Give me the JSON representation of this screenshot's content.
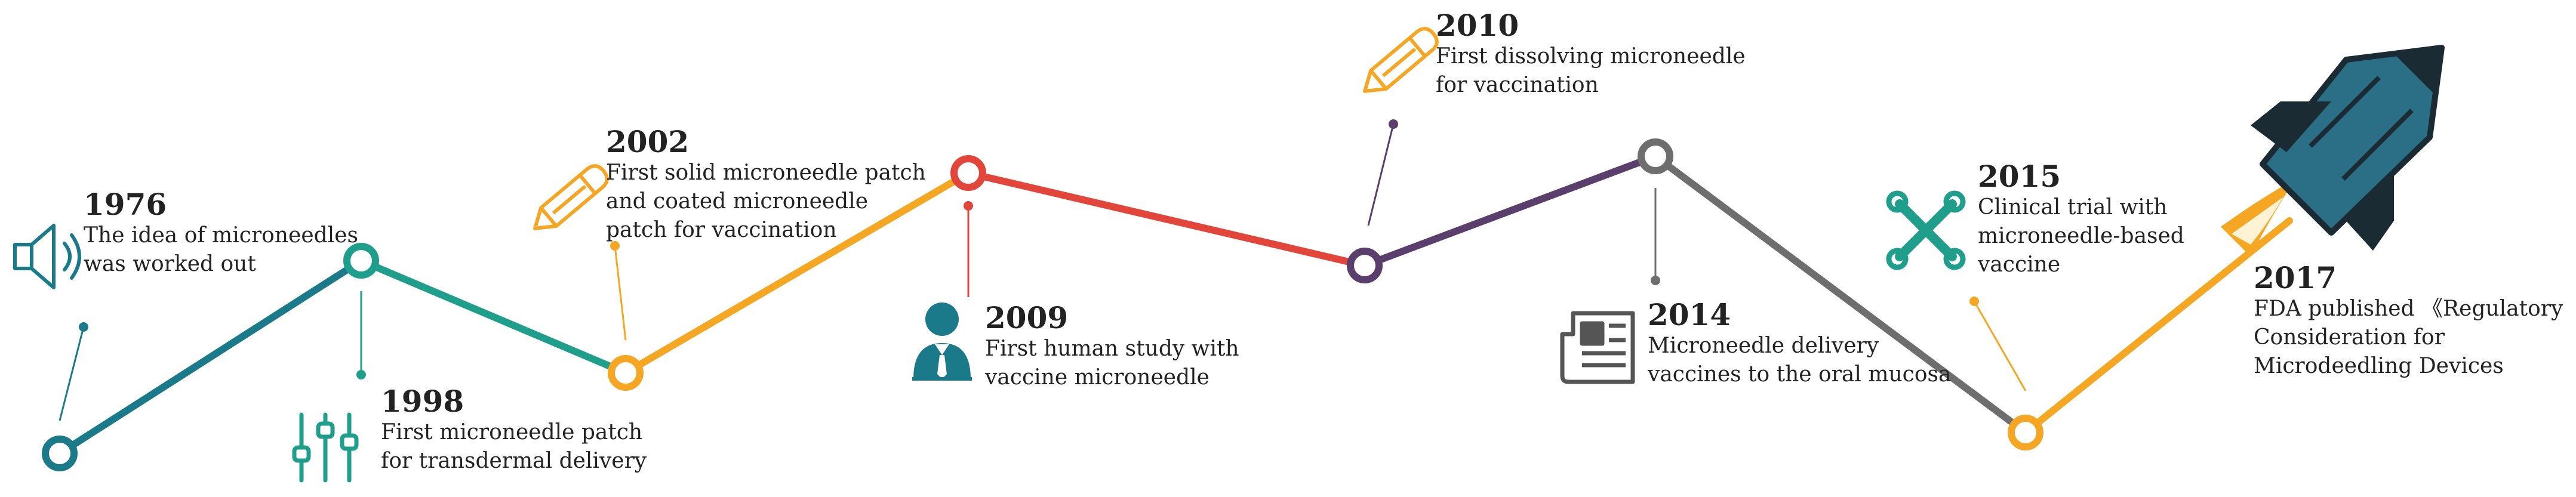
{
  "colors": {
    "teal_dark": "#1a7a8a",
    "teal": "#1f9e8c",
    "orange": "#f5a623",
    "red": "#e2463a",
    "purple": "#5a3e6b",
    "gray": "#6e6e6e",
    "line_1976": "#1a7a8a",
    "line_2017": "#f5a623"
  },
  "milestones": [
    {
      "year": "1976",
      "text": "The idea of microneedles\nwas worked out",
      "icon": "speaker-icon",
      "color": "#1a7a8a"
    },
    {
      "year": "1998",
      "text": "First microneedle patch\nfor transdermal delivery",
      "icon": "sliders-icon",
      "color": "#1f9e8c"
    },
    {
      "year": "2002",
      "text": "First solid microneedle patch\nand coated microneedle\npatch for vaccination",
      "icon": "pencil-icon",
      "color": "#f5a623"
    },
    {
      "year": "2009",
      "text": "First human study with\nvaccine microneedle",
      "icon": "person-icon",
      "color": "#1a7a8a"
    },
    {
      "year": "2010",
      "text": "First dissolving microneedle\nfor vaccination",
      "icon": "pencil-icon",
      "color": "#f5a623"
    },
    {
      "year": "2014",
      "text": "Microneedle delivery\nvaccines to the oral mucosa",
      "icon": "newspaper-icon",
      "color": "#555555"
    },
    {
      "year": "2015",
      "text": "Clinical trial with\nmicroneedle-based\nvaccine",
      "icon": "tools-icon",
      "color": "#1f9e8c"
    },
    {
      "year": "2017",
      "text": "FDA published 《Regulatory\nConsideration for\nMicrodeedling Devices",
      "icon": "rocket-icon",
      "color": "#2a6f86"
    }
  ]
}
